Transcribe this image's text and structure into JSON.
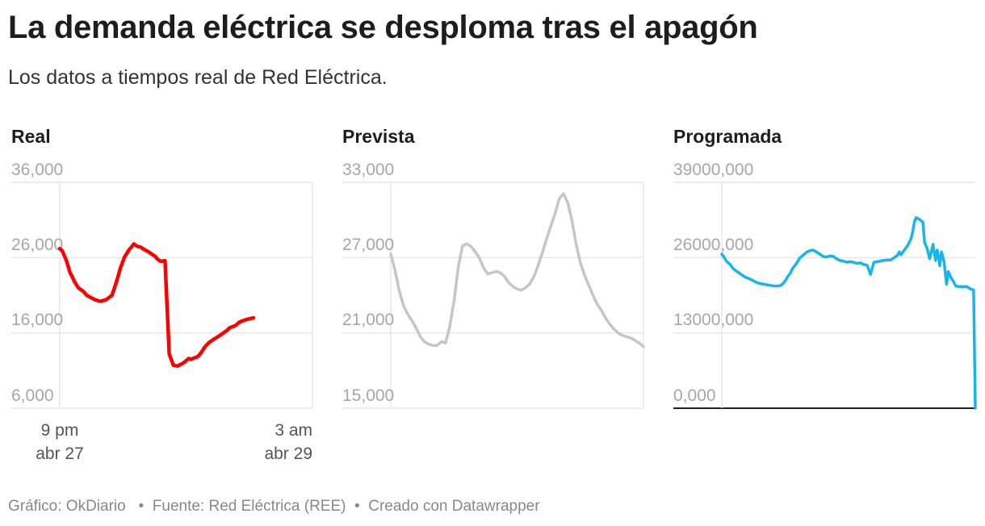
{
  "title": "La demanda eléctrica se desploma tras el apagón",
  "subtitle": "Los datos a tiempos real de Red Eléctrica.",
  "footer": {
    "credit": "Gráfico: OkDiario",
    "source": "Fuente: Red Eléctrica (REE)",
    "tool": "Creado con Datawrapper"
  },
  "colors": {
    "real": "#ff0000",
    "prevista": "#c6c6c6",
    "programada": "#18b4f0",
    "grid": "#e3e3e3",
    "ticks": "#a7a7a7"
  },
  "chart_data": [
    {
      "type": "line",
      "title": "Real",
      "ylim": [
        6000,
        36000
      ],
      "yticks": [
        "36,000",
        "26,000",
        "16,000",
        "6,000"
      ],
      "ytick_values": [
        36000,
        26000,
        16000,
        6000
      ],
      "xlim": [
        0,
        30
      ],
      "xticks": [
        {
          "x": 0,
          "line1": "9 pm",
          "line2": "abr 27"
        },
        {
          "x": 30,
          "line1": "3 am",
          "line2": "abr 29"
        }
      ],
      "grid": true,
      "series": [
        {
          "x": [
            0,
            0.3,
            0.8,
            1.2,
            1.8,
            2.2,
            2.8,
            3.2,
            3.7,
            4.2,
            4.8,
            5.5,
            6.2,
            6.8,
            7.2,
            7.7,
            8.2,
            8.8,
            9.2,
            9.6,
            10.0,
            10.5,
            11.0,
            11.3,
            11.6,
            12.0,
            12.5,
            13.0,
            13.5,
            14.0,
            14.5,
            14.8,
            15.0,
            15.3,
            15.6,
            16.0,
            16.3,
            16.5,
            16.8,
            17.2,
            17.7,
            18.2,
            18.8,
            19.3,
            19.8,
            20.2,
            20.7,
            21.0,
            21.3,
            21.7,
            22.2,
            22.6,
            23.0
          ],
          "y": [
            27200,
            26900,
            25600,
            24100,
            22700,
            22000,
            21500,
            21000,
            20700,
            20400,
            20200,
            20400,
            21000,
            23000,
            24600,
            26100,
            27000,
            27800,
            27500,
            27400,
            27100,
            26800,
            26400,
            26200,
            25800,
            25500,
            25600,
            13200,
            11700,
            11600,
            11900,
            12100,
            12300,
            12600,
            12500,
            12700,
            12800,
            13000,
            13400,
            14100,
            14700,
            15100,
            15500,
            15900,
            16300,
            16700,
            16900,
            17100,
            17400,
            17600,
            17800,
            17900,
            18000
          ]
        }
      ]
    },
    {
      "type": "line",
      "title": "Prevista",
      "ylim": [
        15000,
        33000
      ],
      "yticks": [
        "33,000",
        "27,000",
        "21,000",
        "15,000"
      ],
      "ytick_values": [
        33000,
        27000,
        21000,
        15000
      ],
      "xlim": [
        0,
        30
      ],
      "grid": true,
      "series": [
        {
          "x": [
            0,
            0.5,
            1.0,
            1.5,
            2.0,
            2.5,
            3.0,
            3.5,
            4.0,
            4.5,
            5.0,
            5.5,
            6.0,
            6.5,
            7.0,
            7.5,
            8.0,
            8.5,
            9.0,
            9.5,
            10.0,
            10.5,
            11.0,
            11.5,
            12.0,
            12.5,
            13.0,
            13.5,
            14.0,
            14.5,
            15.0,
            15.5,
            16.0,
            16.5,
            17.0,
            17.5,
            18.0,
            18.5,
            19.0,
            19.5,
            20.0,
            20.5,
            21.0,
            21.5,
            22.0,
            22.5,
            23.0,
            23.5,
            24.0,
            24.5,
            25.0,
            25.5,
            26.0,
            26.5,
            27.0,
            27.5,
            28.0,
            28.5,
            29.0,
            29.5,
            30.0
          ],
          "y": [
            27300,
            26000,
            24400,
            23200,
            22500,
            22000,
            21400,
            20700,
            20300,
            20100,
            20000,
            20000,
            20300,
            20200,
            21500,
            23500,
            26200,
            27900,
            28100,
            27900,
            27500,
            27000,
            26200,
            25700,
            25800,
            25900,
            25800,
            25500,
            25000,
            24700,
            24500,
            24400,
            24600,
            24900,
            25500,
            26400,
            27400,
            28500,
            29500,
            30500,
            31700,
            32100,
            31400,
            30000,
            28100,
            26600,
            25600,
            24800,
            24000,
            23300,
            22800,
            22200,
            21700,
            21300,
            21000,
            20800,
            20700,
            20600,
            20400,
            20200,
            19900
          ]
        }
      ]
    },
    {
      "type": "line",
      "title": "Programada",
      "ylim": [
        0,
        39000000
      ],
      "yticks": [
        "39000,000",
        "26000,000",
        "13000,000",
        "0,000"
      ],
      "ytick_values": [
        39000000,
        26000000,
        13000000,
        0
      ],
      "xlim": [
        0,
        30
      ],
      "grid": true,
      "series": [
        {
          "x": [
            0,
            0.3,
            0.6,
            1.0,
            1.3,
            1.6,
            2.0,
            2.4,
            2.8,
            3.2,
            3.6,
            4.0,
            4.3,
            4.6,
            5.0,
            5.4,
            5.8,
            6.2,
            6.6,
            7.0,
            7.3,
            7.5,
            7.8,
            8.1,
            8.4,
            8.8,
            9.2,
            9.6,
            10.0,
            10.4,
            10.8,
            11.2,
            11.6,
            12.0,
            12.4,
            12.8,
            13.2,
            13.6,
            14.0,
            14.4,
            14.8,
            15.2,
            15.6,
            16.0,
            16.4,
            16.8,
            17.2,
            17.6,
            18.0,
            18.4,
            18.8,
            19.0,
            19.2,
            19.6,
            20.0,
            20.4,
            20.8,
            21.0,
            21.2,
            21.6,
            22.0,
            22.4,
            22.6,
            22.8,
            23.0,
            23.4,
            23.8,
            24.0,
            24.3,
            24.6,
            25.0,
            25.3,
            25.5,
            25.8,
            26.0,
            26.3,
            26.6,
            26.8,
            27.1,
            27.4,
            27.7,
            28.0,
            28.3,
            28.6,
            29.0,
            29.4,
            29.6,
            29.8,
            30.0
          ],
          "y": [
            26600000,
            26000000,
            25300000,
            24800000,
            24200000,
            23800000,
            23400000,
            23000000,
            22600000,
            22400000,
            22100000,
            21800000,
            21600000,
            21500000,
            21400000,
            21300000,
            21200000,
            21100000,
            21100000,
            21200000,
            21600000,
            22000000,
            22700000,
            23300000,
            24200000,
            24900000,
            25900000,
            26400000,
            26900000,
            27200000,
            27300000,
            27000000,
            26600000,
            26200000,
            26100000,
            26300000,
            26200000,
            25800000,
            25500000,
            25400000,
            25200000,
            25300000,
            25200000,
            25000000,
            25100000,
            24800000,
            24700000,
            23100000,
            25200000,
            25300000,
            25400000,
            25500000,
            25500000,
            25600000,
            25600000,
            26000000,
            26400000,
            27000000,
            26500000,
            27300000,
            28100000,
            29300000,
            30500000,
            32200000,
            32900000,
            32600000,
            32100000,
            28600000,
            27600000,
            25800000,
            28300000,
            25500000,
            27300000,
            24600000,
            27000000,
            25300000,
            21400000,
            23600000,
            22600000,
            21900000,
            21100000,
            21000000,
            21000000,
            21000000,
            21000000,
            20600000,
            20500000,
            20400000,
            0
          ]
        }
      ]
    }
  ]
}
